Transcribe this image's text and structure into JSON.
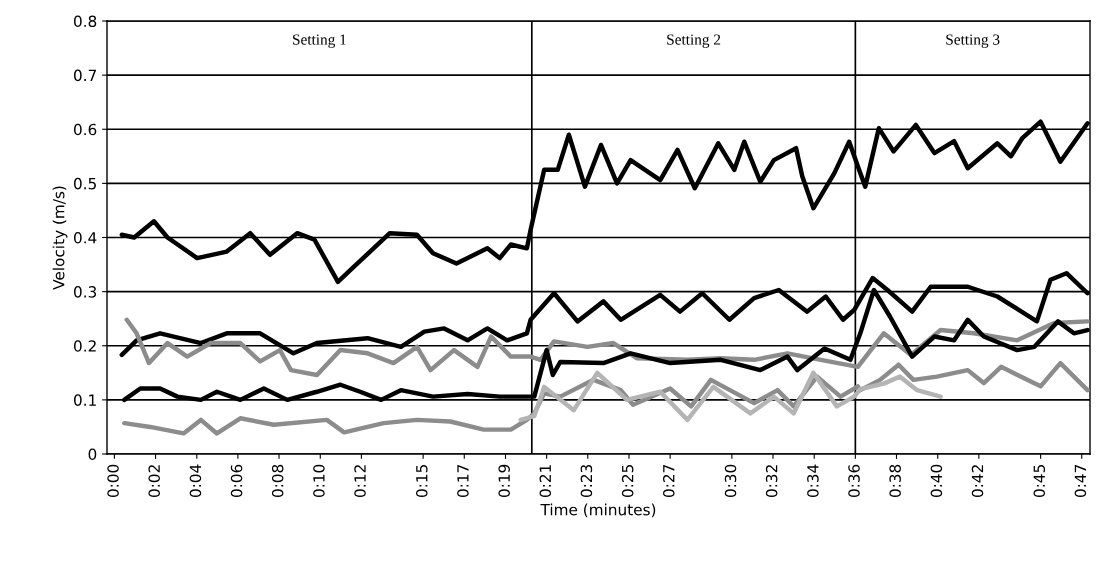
{
  "chart_data": {
    "type": "line",
    "xlabel": "Time (minutes)",
    "ylabel": "Velocity (m/s)",
    "xlim": [
      -0.006,
      0.79
    ],
    "ylim": [
      0,
      0.8
    ],
    "xticks": [
      {
        "value": 0,
        "label": "0:00"
      },
      {
        "value": 0.0333,
        "label": "0:02"
      },
      {
        "value": 0.0667,
        "label": "0:04"
      },
      {
        "value": 0.1,
        "label": "0:06"
      },
      {
        "value": 0.1333,
        "label": "0:08"
      },
      {
        "value": 0.1667,
        "label": "0:10"
      },
      {
        "value": 0.2,
        "label": "0:12"
      },
      {
        "value": 0.25,
        "label": "0:15"
      },
      {
        "value": 0.2833,
        "label": "0:17"
      },
      {
        "value": 0.3167,
        "label": "0:19"
      },
      {
        "value": 0.35,
        "label": "0:21"
      },
      {
        "value": 0.3833,
        "label": "0:23"
      },
      {
        "value": 0.4167,
        "label": "0:25"
      },
      {
        "value": 0.45,
        "label": "0:27"
      },
      {
        "value": 0.5,
        "label": "0:30"
      },
      {
        "value": 0.5333,
        "label": "0:32"
      },
      {
        "value": 0.5667,
        "label": "0:34"
      },
      {
        "value": 0.6,
        "label": "0:36"
      },
      {
        "value": 0.6333,
        "label": "0:38"
      },
      {
        "value": 0.6667,
        "label": "0:40"
      },
      {
        "value": 0.7,
        "label": "0:42"
      },
      {
        "value": 0.75,
        "label": "0:45"
      },
      {
        "value": 0.7833,
        "label": "0:47"
      }
    ],
    "yticks": [
      0,
      0.1,
      0.2,
      0.3,
      0.4,
      0.5,
      0.6,
      0.7,
      0.8
    ],
    "grid": "y",
    "marker": "none",
    "line_style": "solid",
    "annotations": [
      "Setting 1",
      "Setting 2",
      "Setting 3"
    ],
    "ref_lines": [
      {
        "axis": "x",
        "value": 0.338,
        "color": "#000000"
      },
      {
        "axis": "x",
        "value": 0.6,
        "color": "#000000"
      }
    ],
    "series": [
      {
        "color": "#000000",
        "x": [
          0.006,
          0.016,
          0.032,
          0.043,
          0.067,
          0.091,
          0.11,
          0.126,
          0.148,
          0.162,
          0.181,
          0.194,
          0.223,
          0.245,
          0.258,
          0.277,
          0.302,
          0.312,
          0.321,
          0.334,
          0.337,
          0.348,
          0.359,
          0.368,
          0.381,
          0.394,
          0.407,
          0.418,
          0.442,
          0.456,
          0.47,
          0.489,
          0.502,
          0.51,
          0.523,
          0.534,
          0.552,
          0.557,
          0.566,
          0.583,
          0.595,
          0.603,
          0.608,
          0.619,
          0.631,
          0.649,
          0.664,
          0.68,
          0.691,
          0.715,
          0.726,
          0.735,
          0.75,
          0.766,
          0.788
        ],
        "values": [
          0.405,
          0.4,
          0.43,
          0.4,
          0.362,
          0.374,
          0.408,
          0.368,
          0.408,
          0.396,
          0.318,
          0.346,
          0.408,
          0.405,
          0.371,
          0.352,
          0.38,
          0.362,
          0.387,
          0.38,
          0.414,
          0.525,
          0.525,
          0.59,
          0.494,
          0.571,
          0.5,
          0.543,
          0.506,
          0.562,
          0.491,
          0.574,
          0.525,
          0.577,
          0.503,
          0.543,
          0.565,
          0.513,
          0.454,
          0.519,
          0.577,
          0.525,
          0.494,
          0.602,
          0.559,
          0.608,
          0.556,
          0.578,
          0.528,
          0.574,
          0.55,
          0.583,
          0.614,
          0.54,
          0.611
        ]
      },
      {
        "color": "#000000",
        "x": [
          0.006,
          0.018,
          0.037,
          0.07,
          0.091,
          0.118,
          0.145,
          0.164,
          0.205,
          0.232,
          0.251,
          0.267,
          0.286,
          0.302,
          0.318,
          0.334,
          0.337,
          0.356,
          0.375,
          0.396,
          0.41,
          0.442,
          0.458,
          0.476,
          0.498,
          0.518,
          0.538,
          0.561,
          0.576,
          0.59,
          0.599,
          0.614,
          0.626,
          0.646,
          0.661,
          0.691,
          0.715,
          0.747,
          0.758,
          0.771,
          0.788
        ],
        "values": [
          0.183,
          0.21,
          0.223,
          0.205,
          0.223,
          0.223,
          0.186,
          0.205,
          0.214,
          0.198,
          0.226,
          0.232,
          0.21,
          0.232,
          0.21,
          0.223,
          0.248,
          0.297,
          0.245,
          0.282,
          0.248,
          0.294,
          0.263,
          0.297,
          0.248,
          0.288,
          0.303,
          0.263,
          0.291,
          0.248,
          0.266,
          0.325,
          0.303,
          0.263,
          0.309,
          0.309,
          0.291,
          0.245,
          0.322,
          0.334,
          0.297
        ]
      },
      {
        "color": "#8c8c8c",
        "x": [
          0.01,
          0.018,
          0.028,
          0.043,
          0.059,
          0.078,
          0.102,
          0.118,
          0.134,
          0.143,
          0.164,
          0.183,
          0.205,
          0.226,
          0.245,
          0.256,
          0.275,
          0.294,
          0.305,
          0.321,
          0.337,
          0.345,
          0.356,
          0.383,
          0.404,
          0.423,
          0.464,
          0.491,
          0.518,
          0.545,
          0.572,
          0.602,
          0.623,
          0.645,
          0.669,
          0.696,
          0.731,
          0.761,
          0.788
        ],
        "values": [
          0.248,
          0.223,
          0.168,
          0.205,
          0.18,
          0.205,
          0.205,
          0.171,
          0.192,
          0.155,
          0.146,
          0.192,
          0.186,
          0.168,
          0.198,
          0.155,
          0.192,
          0.161,
          0.217,
          0.18,
          0.18,
          0.174,
          0.208,
          0.198,
          0.205,
          0.177,
          0.174,
          0.177,
          0.174,
          0.186,
          0.174,
          0.161,
          0.223,
          0.183,
          0.229,
          0.223,
          0.21,
          0.242,
          0.245
        ]
      },
      {
        "color": "#000000",
        "x": [
          0.008,
          0.021,
          0.037,
          0.051,
          0.07,
          0.083,
          0.102,
          0.121,
          0.14,
          0.164,
          0.183,
          0.199,
          0.216,
          0.232,
          0.258,
          0.286,
          0.312,
          0.334,
          0.34,
          0.35,
          0.355,
          0.361,
          0.396,
          0.418,
          0.45,
          0.491,
          0.523,
          0.545,
          0.553,
          0.575,
          0.596,
          0.604,
          0.615,
          0.628,
          0.646,
          0.664,
          0.68,
          0.691,
          0.704,
          0.731,
          0.745,
          0.764,
          0.777,
          0.788
        ],
        "values": [
          0.1,
          0.121,
          0.121,
          0.106,
          0.1,
          0.115,
          0.1,
          0.121,
          0.1,
          0.115,
          0.128,
          0.115,
          0.1,
          0.118,
          0.106,
          0.111,
          0.106,
          0.106,
          0.106,
          0.192,
          0.146,
          0.17,
          0.168,
          0.186,
          0.168,
          0.174,
          0.155,
          0.18,
          0.155,
          0.195,
          0.174,
          0.223,
          0.303,
          0.254,
          0.18,
          0.217,
          0.21,
          0.248,
          0.217,
          0.192,
          0.198,
          0.245,
          0.223,
          0.229
        ]
      },
      {
        "color": "#8c8c8c",
        "x": [
          0.008,
          0.029,
          0.056,
          0.07,
          0.083,
          0.102,
          0.129,
          0.172,
          0.186,
          0.218,
          0.245,
          0.272,
          0.299,
          0.321,
          0.334,
          0.34,
          0.348,
          0.361,
          0.388,
          0.41,
          0.42,
          0.45,
          0.467,
          0.483,
          0.518,
          0.537,
          0.55,
          0.569,
          0.588,
          0.602,
          0.604,
          0.62,
          0.635,
          0.647,
          0.666,
          0.691,
          0.704,
          0.718,
          0.75,
          0.766,
          0.788
        ],
        "values": [
          0.057,
          0.05,
          0.038,
          0.063,
          0.038,
          0.066,
          0.054,
          0.063,
          0.04,
          0.057,
          0.063,
          0.06,
          0.045,
          0.045,
          0.063,
          0.075,
          0.112,
          0.106,
          0.137,
          0.118,
          0.091,
          0.121,
          0.088,
          0.137,
          0.094,
          0.118,
          0.088,
          0.143,
          0.106,
          0.125,
          0.118,
          0.137,
          0.165,
          0.137,
          0.143,
          0.155,
          0.131,
          0.161,
          0.125,
          0.168,
          0.118
        ]
      },
      {
        "color": "#b4b4b4",
        "x": [
          0.329,
          0.34,
          0.348,
          0.372,
          0.391,
          0.415,
          0.442,
          0.464,
          0.485,
          0.515,
          0.534,
          0.55,
          0.566,
          0.585,
          0.599,
          0.604,
          0.623,
          0.636,
          0.65,
          0.669
        ],
        "values": [
          0.063,
          0.07,
          0.124,
          0.081,
          0.15,
          0.1,
          0.115,
          0.063,
          0.124,
          0.075,
          0.106,
          0.075,
          0.15,
          0.088,
          0.106,
          0.12,
          0.13,
          0.143,
          0.118,
          0.106
        ]
      }
    ]
  }
}
